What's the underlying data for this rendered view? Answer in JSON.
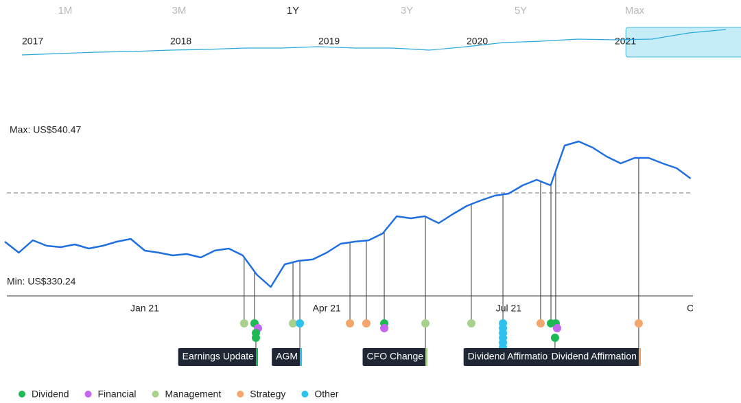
{
  "range_buttons": [
    "1M",
    "3M",
    "1Y",
    "3Y",
    "5Y",
    "Max"
  ],
  "active_range": "1Y",
  "chart_data": [
    {
      "type": "line",
      "color": "#27a9d8",
      "ylim": [
        200,
        560
      ],
      "categories": [
        "2017",
        null,
        null,
        null,
        "2018",
        null,
        null,
        null,
        "2019",
        null,
        null,
        null,
        "2020",
        null,
        null,
        null,
        "2021",
        null,
        null,
        null
      ],
      "values": [
        272,
        286.4,
        300.8,
        308,
        322.4,
        329.6,
        344,
        344,
        358.4,
        344,
        344,
        322.4,
        358.4,
        401.6,
        416,
        437.6,
        430.4,
        437.6,
        502.4,
        538.4
      ],
      "selection": [
        16.3,
        19.9
      ]
    },
    {
      "type": "line",
      "color": "#1f6fe0",
      "ylim": [
        330.24,
        540.47
      ],
      "max_label": "Max: US$540.47",
      "min_label": "Min: US$330.24",
      "reference_line": 466.1,
      "categories": [
        null,
        null,
        null,
        null,
        null,
        null,
        null,
        null,
        null,
        null,
        "Jan 21",
        null,
        null,
        null,
        null,
        null,
        null,
        null,
        null,
        null,
        null,
        null,
        null,
        "Apr 21",
        null,
        null,
        null,
        null,
        null,
        null,
        null,
        null,
        null,
        null,
        null,
        null,
        "Jul 21",
        null,
        null,
        null,
        null,
        null,
        null,
        null,
        null,
        null,
        null,
        null,
        null,
        "O"
      ],
      "values": [
        395.7,
        379.8,
        397.7,
        389.7,
        387.8,
        391.7,
        385.8,
        389.7,
        395.7,
        399.7,
        382.8,
        379.8,
        375.9,
        377.8,
        372.9,
        382.8,
        385.8,
        375.9,
        348.1,
        330.24,
        363,
        368,
        370,
        379.8,
        392.7,
        395.7,
        397.7,
        407.6,
        432.4,
        429.4,
        432.4,
        422.5,
        435.4,
        447.3,
        455.2,
        462.1,
        465.1,
        477,
        485,
        477,
        534.5,
        540.47,
        531.5,
        518.7,
        508.7,
        516.7,
        516.7,
        508.7,
        501.8,
        486.9
      ],
      "event_types": [
        {
          "name": "Dividend",
          "color": "#1db954"
        },
        {
          "name": "Financial",
          "color": "#c466f0"
        },
        {
          "name": "Management",
          "color": "#a9d18e"
        },
        {
          "name": "Strategy",
          "color": "#f4a66c"
        },
        {
          "name": "Other",
          "color": "#2fc1ee"
        }
      ],
      "events": [
        {
          "type": "Management",
          "x": 17.1
        },
        {
          "type": "Dividend",
          "x": 17.84
        },
        {
          "type": "Financial",
          "x": 18.09
        },
        {
          "type": "Dividend",
          "x": 17.94
        },
        {
          "type": "Dividend",
          "x": 17.94,
          "label": "Earnings Update"
        },
        {
          "type": "Management",
          "x": 20.59
        },
        {
          "type": "Other",
          "x": 21.08,
          "label": "AGM"
        },
        {
          "type": "Strategy",
          "x": 24.66
        },
        {
          "type": "Strategy",
          "x": 25.83
        },
        {
          "type": "Dividend",
          "x": 27.11
        },
        {
          "type": "Financial",
          "x": 27.11
        },
        {
          "type": "Management",
          "x": 30.05,
          "label": "CFO Change"
        },
        {
          "type": "Management",
          "x": 33.33
        },
        {
          "type": "Other",
          "x": 35.59
        },
        {
          "type": "Other",
          "x": 35.59
        },
        {
          "type": "Other",
          "x": 35.59
        },
        {
          "type": "Other",
          "x": 35.59
        },
        {
          "type": "Other",
          "x": 35.59
        },
        {
          "type": "Other",
          "x": 35.59
        },
        {
          "type": "Strategy",
          "x": 38.28
        },
        {
          "type": "Dividend",
          "x": 39.02
        },
        {
          "type": "Dividend",
          "x": 39.36
        },
        {
          "type": "Financial",
          "x": 39.46
        },
        {
          "type": "Dividend",
          "x": 39.31,
          "label": "Dividend Affirmation"
        },
        {
          "type": "Strategy",
          "x": 45.29,
          "label": "Dividend Affirmation"
        }
      ]
    }
  ]
}
